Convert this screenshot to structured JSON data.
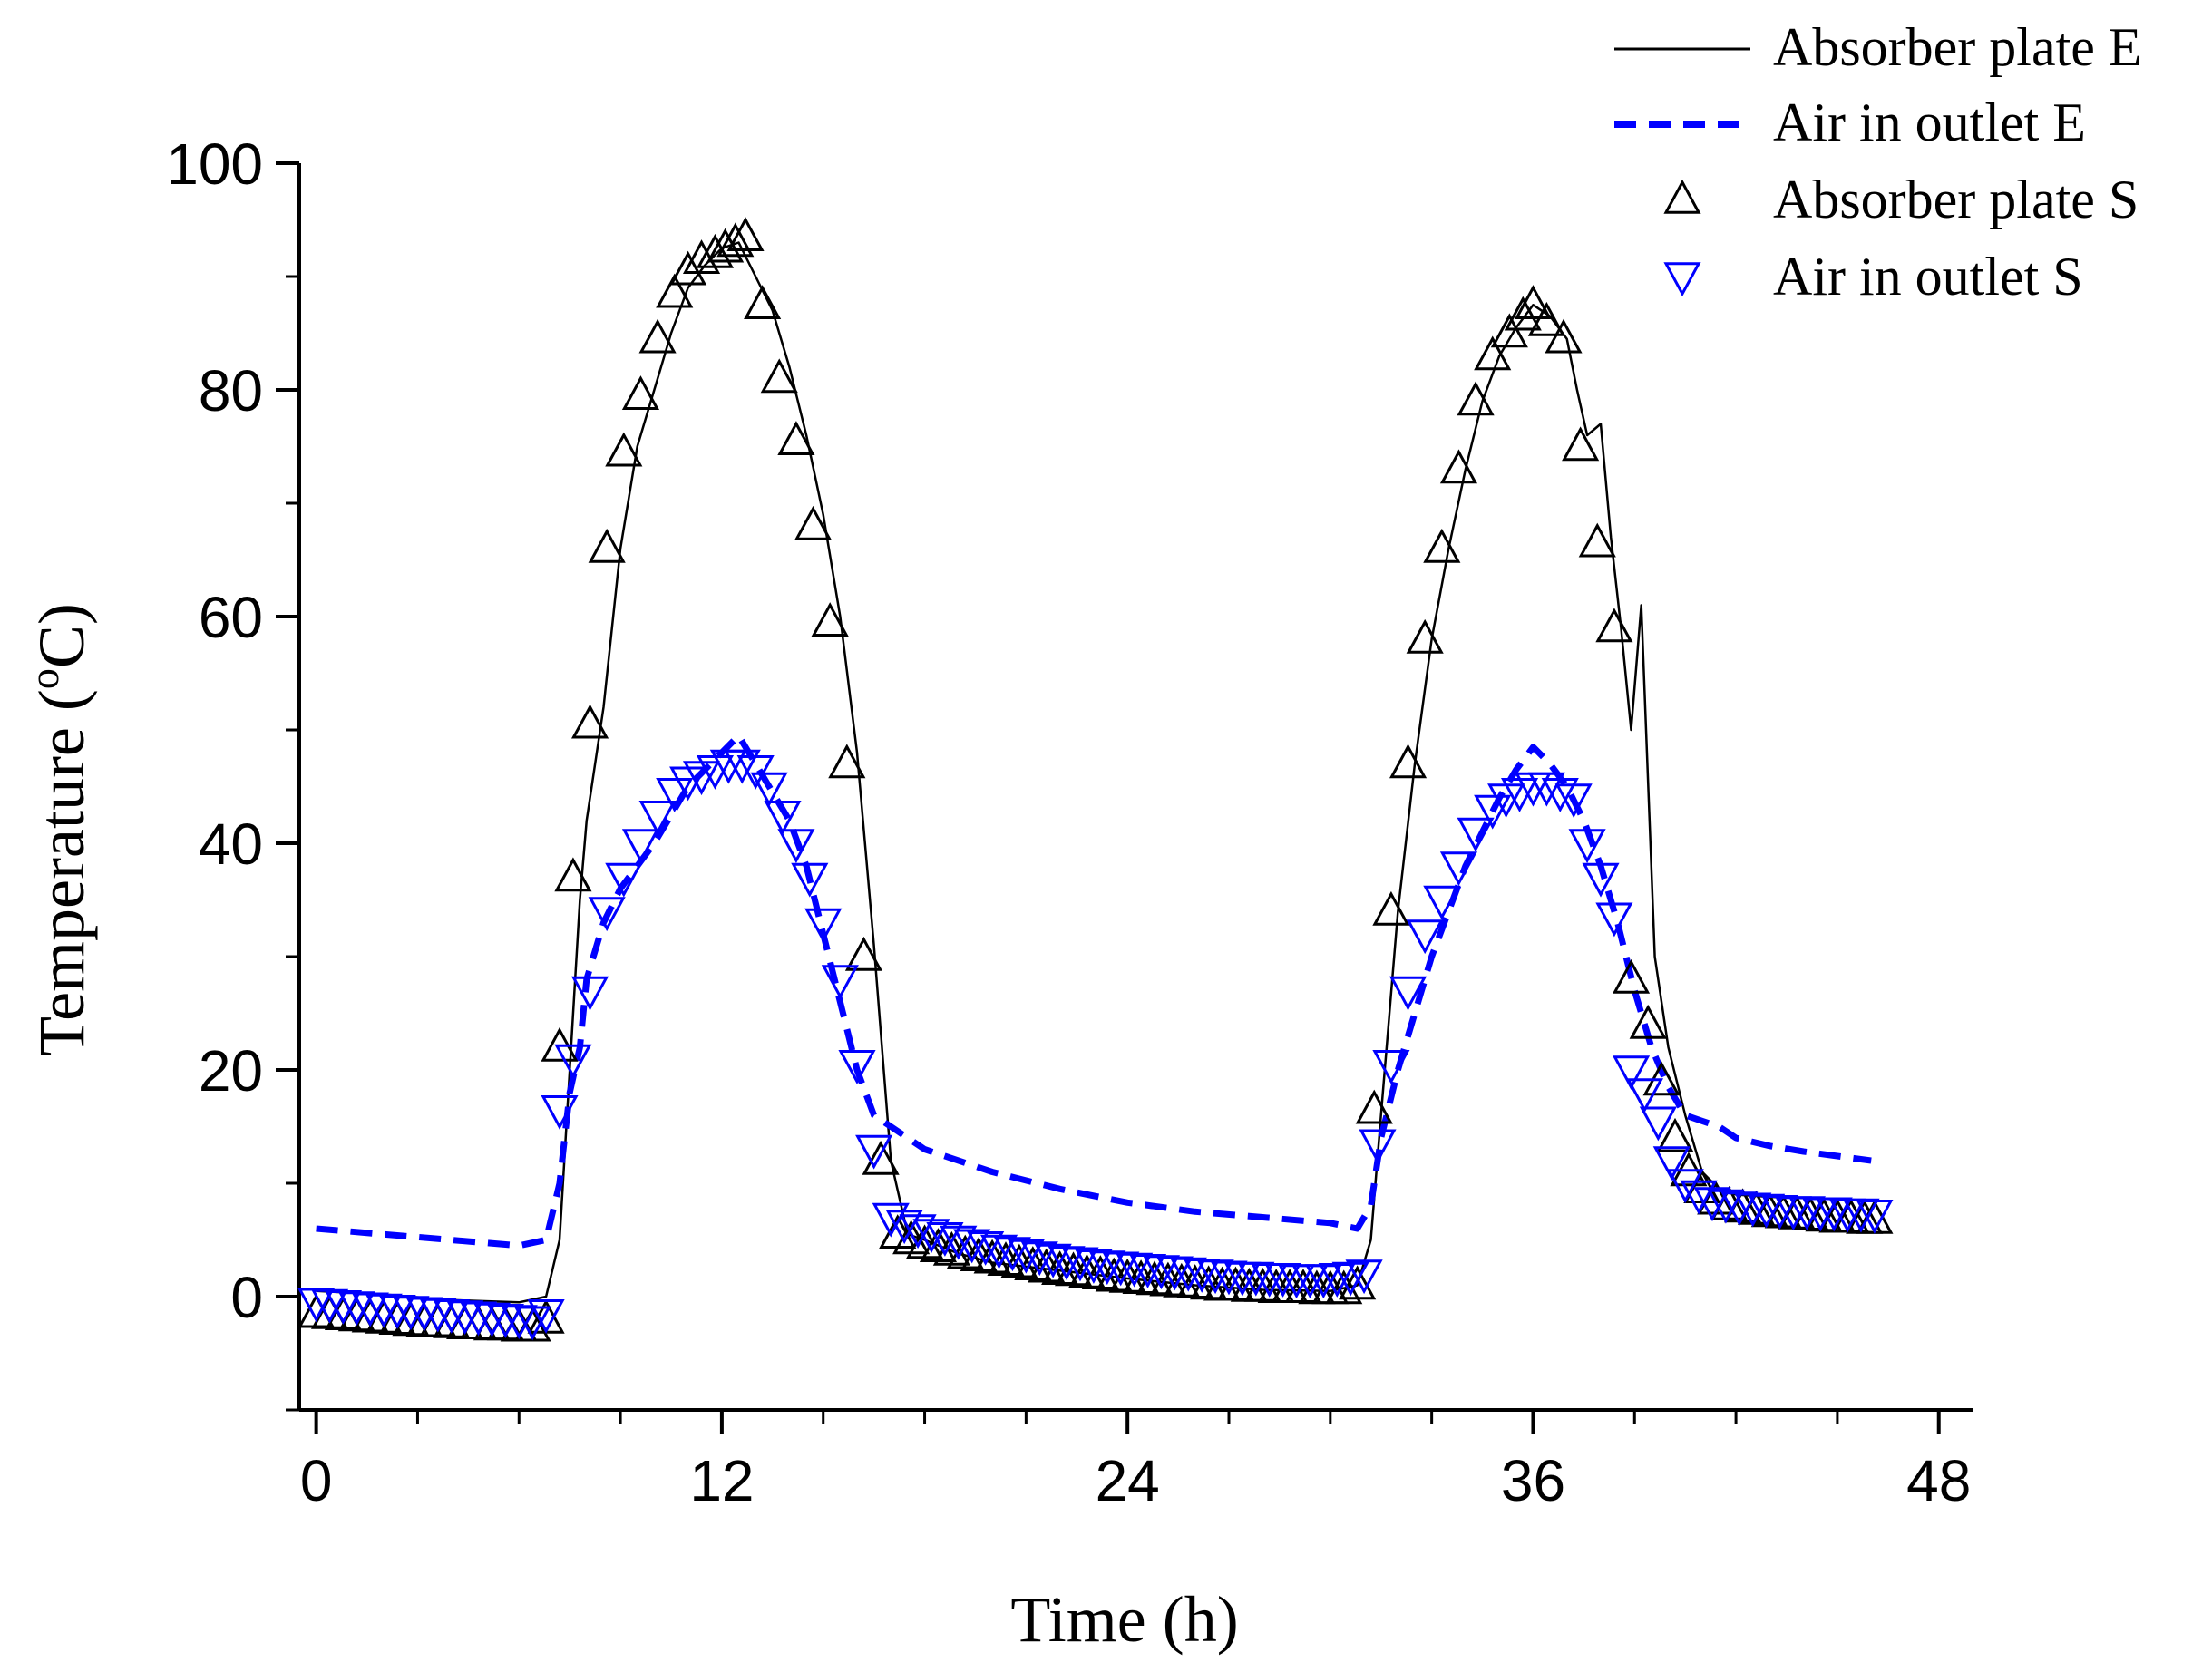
{
  "chart_data": {
    "type": "line",
    "xlabel": "Time (h)",
    "ylabel": {
      "prefix": "Temperature (",
      "sup": "o",
      "suffix": "C)"
    },
    "xlim": [
      -0.5,
      49
    ],
    "ylim": [
      -10,
      100
    ],
    "xticks": [
      0,
      12,
      24,
      36,
      48
    ],
    "yticks": [
      0,
      20,
      40,
      60,
      80,
      100
    ],
    "legend_position": "top-right",
    "series": [
      {
        "name": "Absorber plate E",
        "style": "solid",
        "color": "#000000",
        "x": [
          0,
          2,
          4,
          6,
          6.8,
          7.2,
          7.5,
          7.8,
          8,
          8.5,
          9,
          9.5,
          10,
          10.5,
          11,
          11.5,
          12,
          12.5,
          13,
          13.5,
          14,
          14.5,
          15,
          15.5,
          16,
          16.5,
          17,
          17.5,
          18,
          19,
          20,
          22,
          24,
          26,
          28,
          30,
          30.8,
          31.2,
          31.5,
          32,
          32.5,
          33,
          33.5,
          34,
          34.5,
          35,
          35.5,
          36,
          36.5,
          37,
          37.3,
          37.6,
          38,
          38.3,
          38.6,
          38.9,
          39.2,
          39.6,
          40,
          40.5,
          41,
          41.5,
          42,
          43,
          44,
          45,
          46
        ],
        "y": [
          0.5,
          0.2,
          -0.3,
          -0.5,
          0,
          5,
          20,
          35,
          42,
          52,
          66,
          75,
          80,
          85,
          89,
          91,
          92.5,
          93,
          90,
          87,
          82,
          76,
          69,
          60,
          48,
          31,
          12,
          5.5,
          5,
          3.8,
          3,
          2.3,
          1.6,
          1.0,
          0.6,
          0.5,
          1.0,
          5,
          16,
          34,
          47,
          58,
          66,
          73,
          79,
          83,
          85.5,
          87.5,
          86.5,
          84.5,
          80,
          76,
          77,
          67,
          59,
          50,
          61,
          30,
          22,
          16,
          11,
          9.5,
          9,
          8.8,
          8.7,
          8.6,
          8.5
        ]
      },
      {
        "name": "Air in outlet E",
        "style": "dashed",
        "color": "#0000ff",
        "x": [
          0,
          2,
          4,
          6,
          6.8,
          7.2,
          7.5,
          7.8,
          8,
          8.5,
          9,
          9.5,
          10,
          10.5,
          11,
          11.5,
          12,
          12.5,
          13,
          13.5,
          14,
          14.5,
          15,
          15.5,
          16,
          16.5,
          17,
          17.5,
          18,
          20,
          22,
          24,
          26,
          28,
          30,
          30.8,
          31.2,
          31.5,
          32,
          32.5,
          33,
          33.5,
          34,
          34.5,
          35,
          35.5,
          36,
          36.5,
          37,
          37.5,
          38,
          38.5,
          39,
          39.5,
          40,
          40.5,
          41,
          41.5,
          42,
          43,
          44,
          45,
          46
        ],
        "y": [
          6,
          5.5,
          5,
          4.5,
          5,
          10,
          18,
          22,
          28,
          33,
          36,
          38,
          40,
          42.5,
          45,
          46.5,
          48,
          49.5,
          47,
          44.5,
          42,
          38,
          32,
          26,
          20,
          16,
          15,
          14,
          13,
          11,
          9.5,
          8.3,
          7.5,
          7,
          6.5,
          6,
          8,
          14,
          20,
          25,
          30,
          34,
          38,
          41,
          44,
          46.5,
          48.5,
          47,
          45,
          42,
          38,
          33,
          27,
          22,
          18.5,
          16,
          15.5,
          15,
          14,
          13.3,
          12.8,
          12.4,
          12
        ]
      },
      {
        "name": "Absorber plate S",
        "style": "marker-up-triangle",
        "color": "#000000",
        "x": [
          0,
          0.4,
          0.8,
          1.2,
          1.6,
          2,
          2.4,
          2.8,
          3.2,
          3.6,
          4,
          4.4,
          4.8,
          5.2,
          5.6,
          6,
          6.4,
          6.8,
          7.2,
          7.6,
          8.1,
          8.6,
          9.1,
          9.6,
          10.1,
          10.6,
          11,
          11.4,
          11.8,
          12.1,
          12.4,
          12.7,
          13.2,
          13.7,
          14.2,
          14.7,
          15.2,
          15.7,
          16.2,
          16.7,
          17.2,
          17.6,
          18,
          18.4,
          18.8,
          19.2,
          19.6,
          20,
          20.4,
          20.8,
          21.2,
          21.6,
          22,
          22.4,
          22.8,
          23.2,
          23.6,
          24,
          24.4,
          24.8,
          25.2,
          25.6,
          26,
          26.4,
          26.8,
          27.2,
          27.6,
          28,
          28.4,
          28.8,
          29.2,
          29.6,
          30,
          30.4,
          30.8,
          31.3,
          31.8,
          32.3,
          32.8,
          33.3,
          33.8,
          34.3,
          34.8,
          35.3,
          35.7,
          36,
          36.4,
          36.9,
          37.4,
          37.9,
          38.4,
          38.9,
          39.4,
          39.8,
          40.2,
          40.6,
          41,
          41.4,
          41.8,
          42.2,
          42.6,
          43,
          43.4,
          43.8,
          44.2,
          44.6,
          45,
          45.4,
          45.8,
          46.1
        ],
        "y": [
          -1.5,
          -1.6,
          -1.7,
          -1.8,
          -1.9,
          -2.0,
          -2.1,
          -2.2,
          -2.3,
          -2.3,
          -2.4,
          -2.5,
          -2.5,
          -2.6,
          -2.6,
          -2.7,
          -2.7,
          -2,
          22,
          37,
          50.5,
          66,
          74.5,
          79.5,
          84.5,
          88.5,
          90.5,
          91.5,
          92,
          92.5,
          93,
          93.5,
          87.5,
          81,
          75.5,
          68,
          59.5,
          47,
          30,
          12,
          5.5,
          5,
          4.6,
          4.3,
          4.0,
          3.7,
          3.5,
          3.3,
          3.1,
          2.9,
          2.7,
          2.5,
          2.3,
          2.2,
          2.0,
          1.9,
          1.7,
          1.6,
          1.5,
          1.4,
          1.3,
          1.2,
          1.1,
          1.0,
          0.9,
          0.9,
          0.8,
          0.8,
          0.7,
          0.7,
          0.7,
          0.6,
          0.6,
          0.6,
          1,
          16.5,
          34,
          47,
          58,
          66,
          73,
          79,
          83,
          85,
          86.5,
          87.5,
          86,
          84.5,
          75,
          66.5,
          59,
          28,
          24,
          19,
          14,
          11,
          9.5,
          8.5,
          8,
          7.8,
          7.6,
          7.4,
          7.3,
          7.2,
          7.1,
          7.0,
          6.9,
          6.9,
          6.8,
          6.8
        ]
      },
      {
        "name": "Air in outlet S",
        "style": "marker-down-triangle",
        "color": "#0000ff",
        "x": [
          0,
          0.4,
          0.8,
          1.2,
          1.6,
          2,
          2.4,
          2.8,
          3.2,
          3.6,
          4,
          4.4,
          4.8,
          5.2,
          5.6,
          6,
          6.4,
          6.8,
          7.2,
          7.6,
          8.1,
          8.6,
          9.1,
          9.6,
          10.1,
          10.6,
          11,
          11.4,
          11.8,
          12.2,
          12.6,
          13,
          13.4,
          13.8,
          14.2,
          14.6,
          15,
          15.5,
          16,
          16.5,
          17,
          17.4,
          17.8,
          18.2,
          18.6,
          19,
          19.4,
          19.8,
          20.2,
          20.6,
          21,
          21.4,
          21.8,
          22.2,
          22.6,
          23,
          23.4,
          23.8,
          24.2,
          24.6,
          25,
          25.4,
          25.8,
          26.2,
          26.6,
          27,
          27.4,
          27.8,
          28.2,
          28.6,
          29,
          29.4,
          29.8,
          30.2,
          30.6,
          31,
          31.4,
          31.8,
          32.3,
          32.8,
          33.3,
          33.8,
          34.3,
          34.8,
          35.2,
          35.6,
          36,
          36.4,
          36.8,
          37.2,
          37.6,
          38,
          38.4,
          38.9,
          39.3,
          39.7,
          40.1,
          40.5,
          40.9,
          41.3,
          41.7,
          42.1,
          42.5,
          42.9,
          43.3,
          43.7,
          44.1,
          44.5,
          44.9,
          45.3,
          45.7,
          46.1
        ],
        "y": [
          -0.5,
          -0.6,
          -0.7,
          -0.8,
          -0.9,
          -1.0,
          -1.1,
          -1.2,
          -1.3,
          -1.4,
          -1.5,
          -1.6,
          -1.7,
          -1.8,
          -1.9,
          -2.0,
          -2.1,
          -1.5,
          16.5,
          21,
          27,
          34,
          37,
          40,
          42.5,
          44.5,
          45.5,
          46,
          46.5,
          47,
          47,
          46.5,
          45,
          42.5,
          40,
          37,
          33,
          28,
          20.5,
          13,
          7,
          6.4,
          6,
          5.6,
          5.3,
          5.0,
          4.7,
          4.5,
          4.2,
          4.0,
          3.8,
          3.6,
          3.4,
          3.2,
          3.1,
          2.9,
          2.8,
          2.7,
          2.6,
          2.5,
          2.4,
          2.3,
          2.2,
          2.1,
          2.0,
          1.9,
          1.8,
          1.8,
          1.7,
          1.7,
          1.6,
          1.6,
          1.6,
          1.7,
          1.8,
          2.0,
          13.5,
          20.5,
          27,
          32,
          35,
          38,
          41,
          43,
          44,
          44.5,
          45,
          45,
          44.5,
          44,
          40,
          37,
          33.5,
          20,
          18,
          15.5,
          12,
          10,
          9,
          8.4,
          8.2,
          8.0,
          7.9,
          7.8,
          7.7,
          7.6,
          7.6,
          7.5,
          7.5,
          7.4,
          7.4,
          7.3
        ]
      }
    ]
  }
}
